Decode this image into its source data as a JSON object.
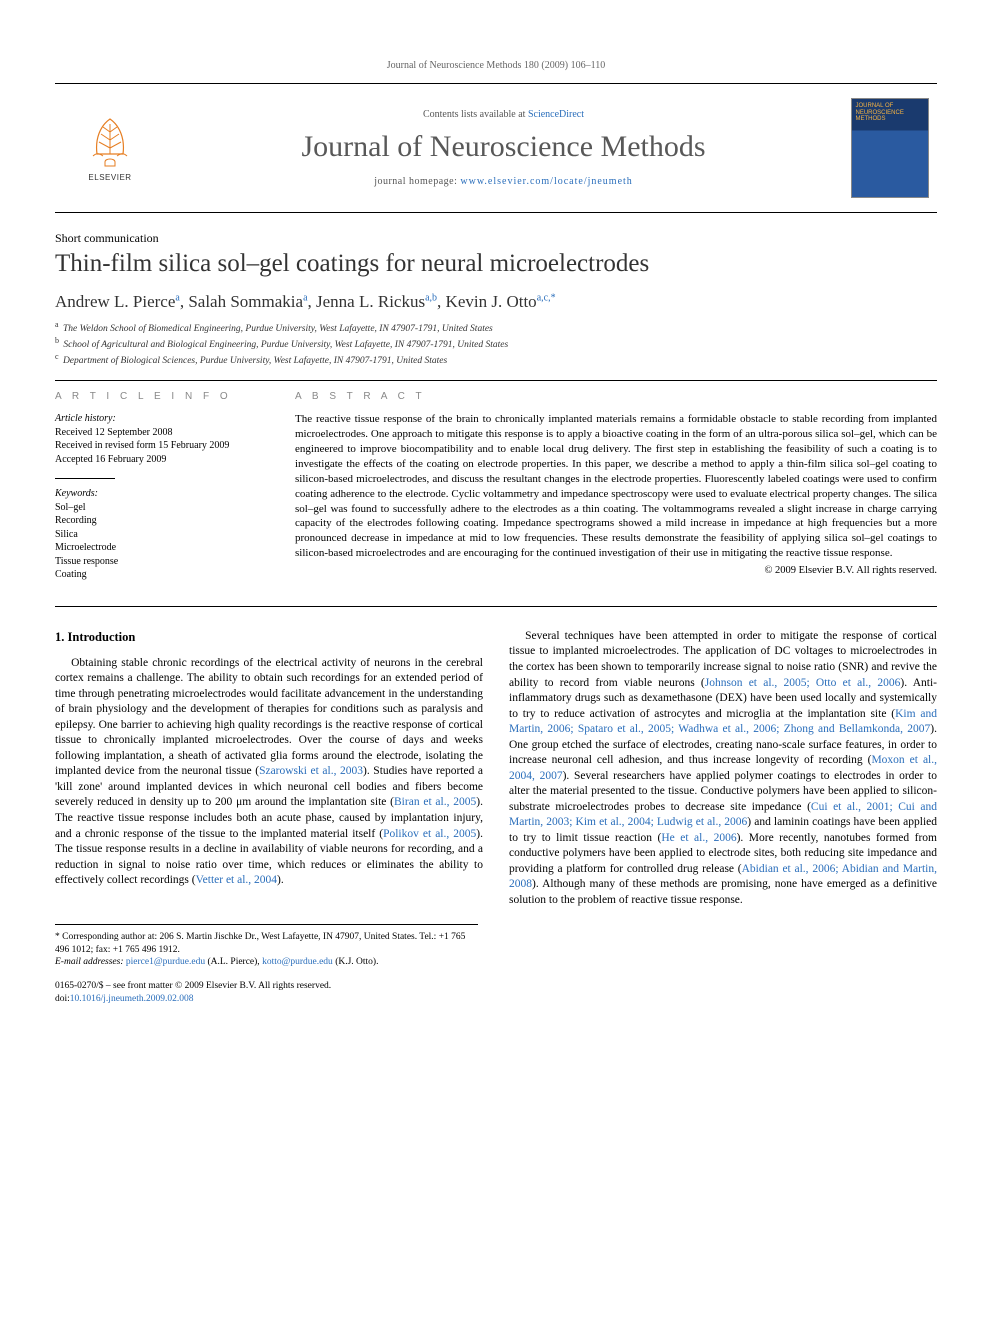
{
  "running_head": "Journal of Neuroscience Methods 180 (2009) 106–110",
  "header": {
    "contents_prefix": "Contents lists available at ",
    "contents_link": "ScienceDirect",
    "journal": "Journal of Neuroscience Methods",
    "homepage_prefix": "journal homepage: ",
    "homepage_url": "www.elsevier.com/locate/jneumeth",
    "publisher": "ELSEVIER",
    "cover_text": "JOURNAL OF NEUROSCIENCE METHODS"
  },
  "article_type": "Short communication",
  "title": "Thin-film silica sol–gel coatings for neural microelectrodes",
  "authors_html": "Andrew L. Pierce<sup>a</sup>, Salah Sommakia<sup>a</sup>, Jenna L. Rickus<sup>a,b</sup>, Kevin J. Otto<sup>a,c,*</sup>",
  "affiliations": [
    {
      "sup": "a",
      "text": "The Weldon School of Biomedical Engineering, Purdue University, West Lafayette, IN 47907-1791, United States"
    },
    {
      "sup": "b",
      "text": "School of Agricultural and Biological Engineering, Purdue University, West Lafayette, IN 47907-1791, United States"
    },
    {
      "sup": "c",
      "text": "Department of Biological Sciences, Purdue University, West Lafayette, IN 47907-1791, United States"
    }
  ],
  "info_head": "A R T I C L E  I N F O",
  "abstract_head": "A B S T R A C T",
  "history": {
    "label": "Article history:",
    "received": "Received 12 September 2008",
    "revised": "Received in revised form 15 February 2009",
    "accepted": "Accepted 16 February 2009"
  },
  "keywords_label": "Keywords:",
  "keywords": [
    "Sol–gel",
    "Recording",
    "Silica",
    "Microelectrode",
    "Tissue response",
    "Coating"
  ],
  "abstract": "The reactive tissue response of the brain to chronically implanted materials remains a formidable obstacle to stable recording from implanted microelectrodes. One approach to mitigate this response is to apply a bioactive coating in the form of an ultra-porous silica sol–gel, which can be engineered to improve biocompatibility and to enable local drug delivery. The first step in establishing the feasibility of such a coating is to investigate the effects of the coating on electrode properties. In this paper, we describe a method to apply a thin-film silica sol–gel coating to silicon-based microelectrodes, and discuss the resultant changes in the electrode properties. Fluorescently labeled coatings were used to confirm coating adherence to the electrode. Cyclic voltammetry and impedance spectroscopy were used to evaluate electrical property changes. The silica sol–gel was found to successfully adhere to the electrodes as a thin coating. The voltammograms revealed a slight increase in charge carrying capacity of the electrodes following coating. Impedance spectrograms showed a mild increase in impedance at high frequencies but a more pronounced decrease in impedance at mid to low frequencies. These results demonstrate the feasibility of applying silica sol–gel coatings to silicon-based microelectrodes and are encouraging for the continued investigation of their use in mitigating the reactive tissue response.",
  "copyright": "© 2009 Elsevier B.V. All rights reserved.",
  "section1_head": "1.  Introduction",
  "para1_a": "Obtaining stable chronic recordings of the electrical activity of neurons in the cerebral cortex remains a challenge. The ability to obtain such recordings for an extended period of time through penetrating microelectrodes would facilitate advancement in the understanding of brain physiology and the development of therapies for conditions such as paralysis and epilepsy. One barrier to achieving high quality recordings is the reactive response of cortical tissue to chronically implanted microelectrodes. Over the course of days and weeks following implantation, a sheath of activated glia forms around the electrode, isolating the implanted device from the neuronal tissue (",
  "cite1": "Szarowski et al., 2003",
  "para1_b": "). Studies have reported a 'kill zone' around implanted devices in which neuronal cell bodies and fibers become severely reduced in density up to 200 μm around the implantation site (",
  "cite2": "Biran et al., 2005",
  "para1_c": "). The reactive tissue response includes both an acute phase, caused by implantation injury, and a chronic response of the tissue to the implanted material itself (",
  "cite3": "Polikov et al., 2005",
  "para1_d": "). The tissue response results in a decline in availability of viable neurons for recording, and a reduction in sig",
  "para1_e": "nal to noise ratio over time, which reduces or eliminates the ability to effectively collect recordings (",
  "cite4": "Vetter et al., 2004",
  "para1_f": ").",
  "para2_a": "Several techniques have been attempted in order to mitigate the response of cortical tissue to implanted microelectrodes. The application of DC voltages to microelectrodes in the cortex has been shown to temporarily increase signal to noise ratio (SNR) and revive the ability to record from viable neurons (",
  "cite5": "Johnson et al., 2005; Otto et al., 2006",
  "para2_b": "). Anti-inflammatory drugs such as dexamethasone (DEX) have been used locally and systemically to try to reduce activation of astrocytes and microglia at the implantation site (",
  "cite6": "Kim and Martin, 2006; Spataro et al., 2005; Wadhwa et al., 2006; Zhong and Bellamkonda, 2007",
  "para2_c": "). One group etched the surface of electrodes, creating nano-scale surface features, in order to increase neuronal cell adhesion, and thus increase longevity of recording (",
  "cite7": "Moxon et al., 2004, 2007",
  "para2_d": "). Several researchers have applied polymer coatings to electrodes in order to alter the material presented to the tissue. Conductive polymers have been applied to silicon-substrate microelectrodes probes to decrease site impedance (",
  "cite8": "Cui et al., 2001; Cui and Martin, 2003; Kim et al., 2004; Ludwig et al., 2006",
  "para2_e": ") and laminin coatings have been applied to try to limit tissue reaction (",
  "cite9": "He et al., 2006",
  "para2_f": "). More recently, nanotubes formed from conductive polymers have been applied to electrode sites, both reducing site impedance and providing a platform for controlled drug release (",
  "cite10": "Abidian et al., 2006; Abidian and Martin, 2008",
  "para2_g": "). Although many of these methods are promising, none have emerged as a definitive solution to the problem of reactive tissue response.",
  "footnote": {
    "corr": "Corresponding author at: 206 S. Martin Jischke Dr., West Lafayette, IN 47907, United States. Tel.: +1 765 496 1012; fax: +1 765 496 1912.",
    "email_label": "E-mail addresses:",
    "email1": "pierce1@purdue.edu",
    "email1_who": " (A.L. Pierce), ",
    "email2": "kotto@purdue.edu",
    "email2_who": " (K.J. Otto)."
  },
  "bottom": {
    "front": "0165-0270/$ – see front matter © 2009 Elsevier B.V. All rights reserved.",
    "doi_prefix": "doi:",
    "doi": "10.1016/j.jneumeth.2009.02.008"
  }
}
